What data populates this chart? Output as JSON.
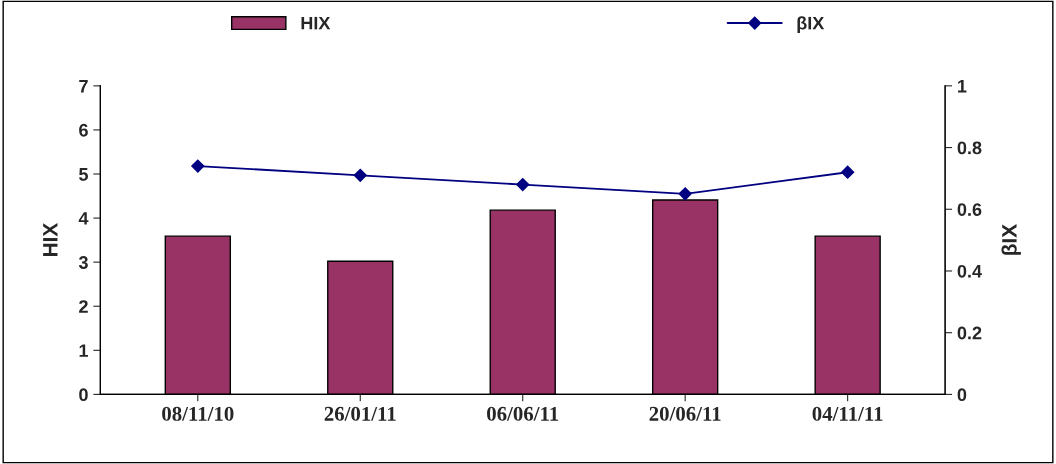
{
  "chart_data": {
    "type": "bar",
    "categories": [
      "08/11/10",
      "26/01/11",
      "06/06/11",
      "20/06/11",
      "04/11/11"
    ],
    "series": [
      {
        "name": "HIX",
        "color": "#993366",
        "values": [
          3.59,
          3.02,
          4.18,
          4.41,
          3.59
        ]
      },
      {
        "name": "βIX",
        "type": "line",
        "axis": "y2",
        "color": "#000080",
        "marker": "diamond",
        "line_style": "solid",
        "values": [
          0.74,
          0.71,
          0.68,
          0.65,
          0.72
        ]
      }
    ],
    "ylabel": "HIX",
    "y2label": "βIX",
    "ylim": [
      0,
      7
    ],
    "yticks": [
      0,
      1,
      2,
      3,
      4,
      5,
      6,
      7
    ],
    "y2lim": [
      0,
      1
    ],
    "y2ticks": [
      0,
      {
        "value": 0.2,
        "label": "0.2"
      },
      {
        "value": 0.4,
        "label": "0.4"
      },
      {
        "value": 0.6,
        "label": "0.6"
      },
      {
        "value": 0.8,
        "label": "0.8"
      },
      1
    ],
    "grid": false,
    "legend": "top"
  }
}
